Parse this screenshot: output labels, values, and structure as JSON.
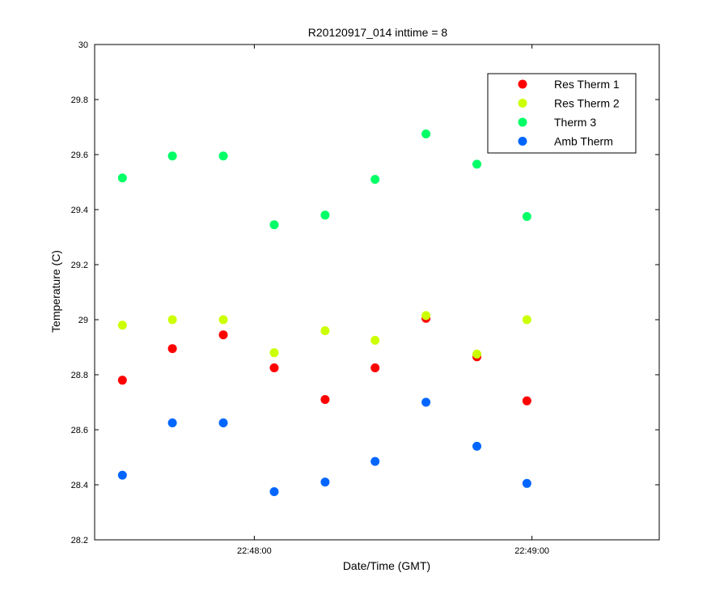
{
  "chart_data": {
    "type": "scatter",
    "title": "R20120917_014 inttime = 8",
    "xlabel": "Date/Time (GMT)",
    "ylabel": "Temperature (C)",
    "xlim": [
      "22:47:25.5",
      "22:49:27.5"
    ],
    "ylim": [
      28.2,
      30
    ],
    "x_ticks": [
      "22:48:00",
      "22:49:00"
    ],
    "y_ticks": [
      "28.2",
      "28.4",
      "28.6",
      "28.8",
      "29",
      "29.2",
      "29.4",
      "29.6",
      "29.8",
      "30"
    ],
    "y_tick_values": [
      28.2,
      28.4,
      28.6,
      28.8,
      29.0,
      29.2,
      29.4,
      29.6,
      29.8,
      30.0
    ],
    "grid": false,
    "legend_position": "top-right",
    "x": [
      "22:47:31.5",
      "22:47:42.3",
      "22:47:53.3",
      "22:48:04.3",
      "22:48:15.3",
      "22:48:26.1",
      "22:48:37.1",
      "22:48:48.1",
      "22:48:58.9"
    ],
    "series": [
      {
        "name": "Res Therm 1",
        "color": "#ff0000",
        "values": [
          28.78,
          28.895,
          28.945,
          28.825,
          28.71,
          28.825,
          29.005,
          28.865,
          28.705
        ]
      },
      {
        "name": "Res Therm 2",
        "color": "#ccff00",
        "values": [
          28.98,
          29.0,
          29.0,
          28.88,
          28.96,
          28.925,
          29.015,
          28.875,
          29.0
        ]
      },
      {
        "name": "Therm 3",
        "color": "#00ff66",
        "values": [
          29.515,
          29.595,
          29.595,
          29.345,
          29.38,
          29.51,
          29.675,
          29.565,
          29.375
        ]
      },
      {
        "name": "Amb Therm",
        "color": "#0066ff",
        "values": [
          28.435,
          28.625,
          28.625,
          28.375,
          28.41,
          28.485,
          28.7,
          28.54,
          28.405
        ]
      }
    ]
  }
}
